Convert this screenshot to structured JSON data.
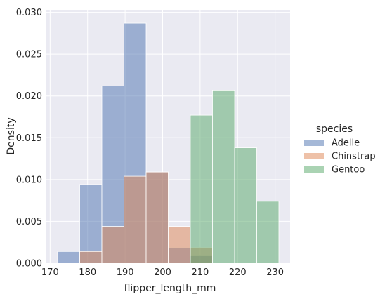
{
  "chart_data": {
    "type": "bar",
    "subtype": "histogram",
    "xlabel": "flipper_length_mm",
    "ylabel": "Density",
    "xlim": [
      169,
      234
    ],
    "ylim": [
      0,
      0.0303
    ],
    "x_ticks": [
      "170",
      "180",
      "190",
      "200",
      "210",
      "220",
      "230"
    ],
    "y_ticks": [
      "0.000",
      "0.005",
      "0.010",
      "0.015",
      "0.020",
      "0.025",
      "0.030"
    ],
    "grid": true,
    "background": "#EAEAF2",
    "legend_title": "species",
    "legend_position": "center-right",
    "bin_edges": [
      172.0,
      177.9,
      183.8,
      189.7,
      195.6,
      201.5,
      207.4,
      213.3,
      219.2,
      225.1,
      231.0
    ],
    "series": [
      {
        "name": "Adelie",
        "color": "#4C72B0",
        "values": [
          0.0014,
          0.0094,
          0.0212,
          0.0287,
          0.0109,
          0.0019,
          0.0009,
          0.0,
          0.0,
          0.0
        ]
      },
      {
        "name": "Chinstrap",
        "color": "#DD8452",
        "values": [
          0.0,
          0.0014,
          0.0044,
          0.0104,
          0.0109,
          0.0044,
          0.0019,
          0.0,
          0.0,
          0.0
        ]
      },
      {
        "name": "Gentoo",
        "color": "#55A868",
        "values": [
          0.0,
          0.0,
          0.0,
          0.0,
          0.0,
          0.0,
          0.0177,
          0.0207,
          0.0138,
          0.0074
        ]
      }
    ]
  }
}
